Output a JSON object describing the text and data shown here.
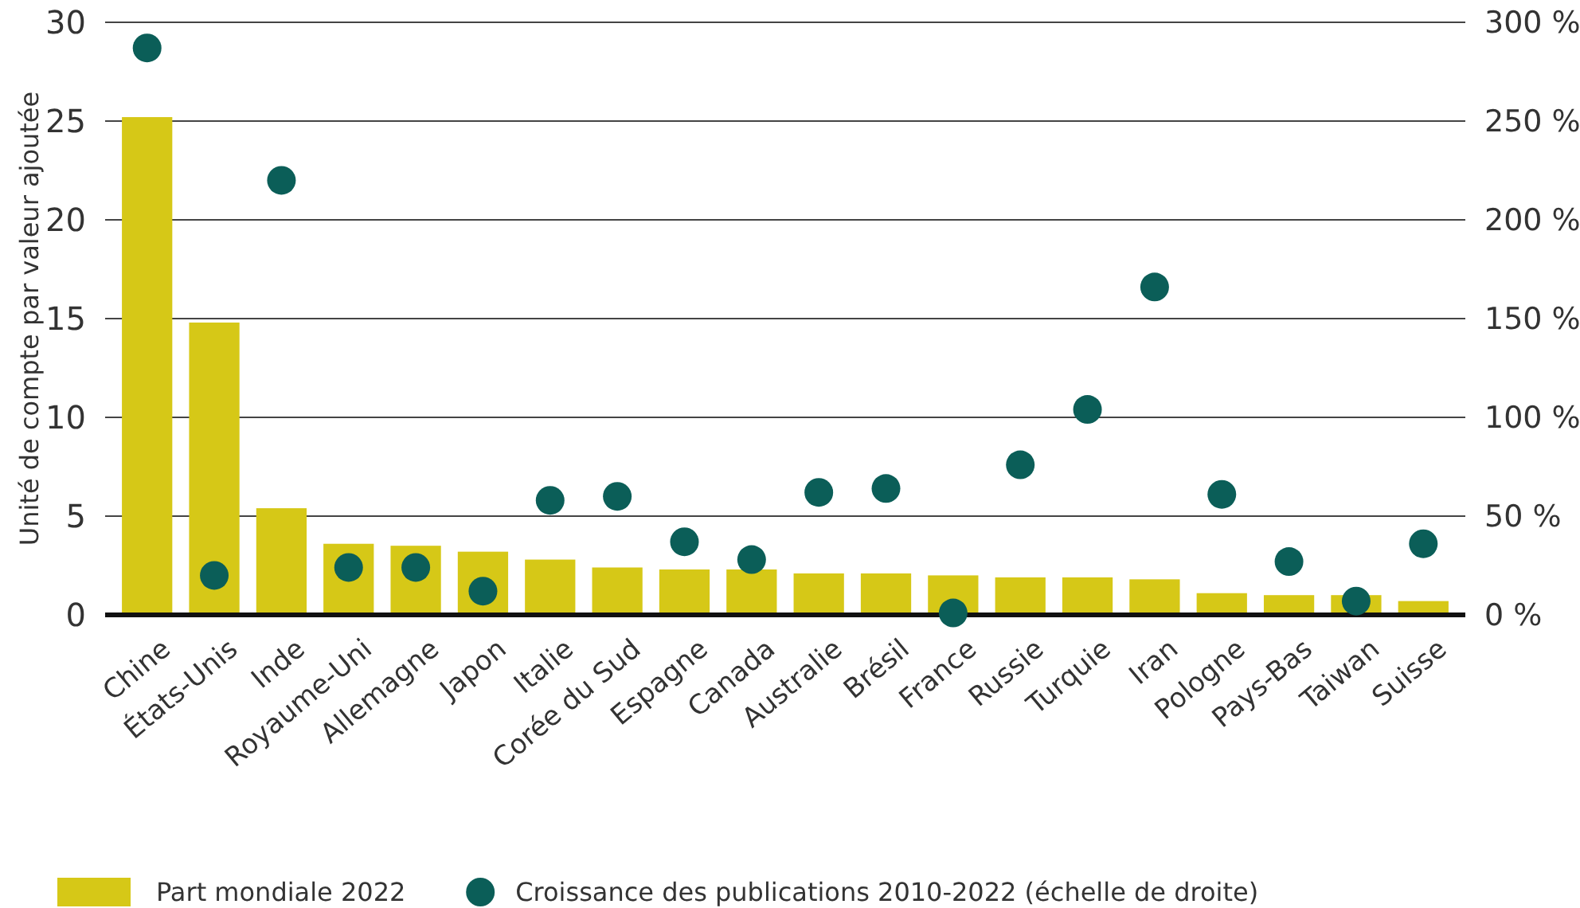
{
  "chart_data": {
    "type": "bar",
    "ylabel": "Unité de compte par valeur ajoutée",
    "categories": [
      "Chine",
      "États-Unis",
      "Inde",
      "Royaume-Uni",
      "Allemagne",
      "Japon",
      "Italie",
      "Corée du Sud",
      "Espagne",
      "Canada",
      "Australie",
      "Brésil",
      "France",
      "Russie",
      "Turquie",
      "Iran",
      "Pologne",
      "Pays-Bas",
      "Taiwan",
      "Suisse"
    ],
    "series": [
      {
        "name": "Part mondiale 2022",
        "color": "#d6c817",
        "values": [
          25.2,
          14.8,
          5.4,
          3.6,
          3.5,
          3.2,
          2.8,
          2.4,
          2.3,
          2.3,
          2.1,
          2.1,
          2.0,
          1.9,
          1.9,
          1.8,
          1.1,
          1.0,
          1.0,
          0.7
        ]
      },
      {
        "name": "Croissance des publications 2010-2022 (échelle de droite)",
        "type": "scatter",
        "axis": "y2",
        "color": "#0b5e58",
        "values": [
          287,
          20,
          220,
          24,
          24,
          12,
          58,
          60,
          37,
          28,
          62,
          64,
          1,
          76,
          104,
          166,
          61,
          27,
          7,
          36
        ]
      }
    ],
    "ylim": [
      0,
      30
    ],
    "yticks": [
      0,
      5,
      10,
      15,
      20,
      25,
      30
    ],
    "y2lim": [
      0,
      300
    ],
    "y2ticks": [
      {
        "value": 0,
        "label": "0 %"
      },
      {
        "value": 50,
        "label": "50 %"
      },
      {
        "value": 100,
        "label": "100 %"
      },
      {
        "value": 150,
        "label": "150 %"
      },
      {
        "value": 200,
        "label": "200 %"
      },
      {
        "value": 250,
        "label": "250 %"
      },
      {
        "value": 300,
        "label": "300 %"
      }
    ],
    "grid": "y",
    "legend": "bottom",
    "marker": "circle"
  }
}
